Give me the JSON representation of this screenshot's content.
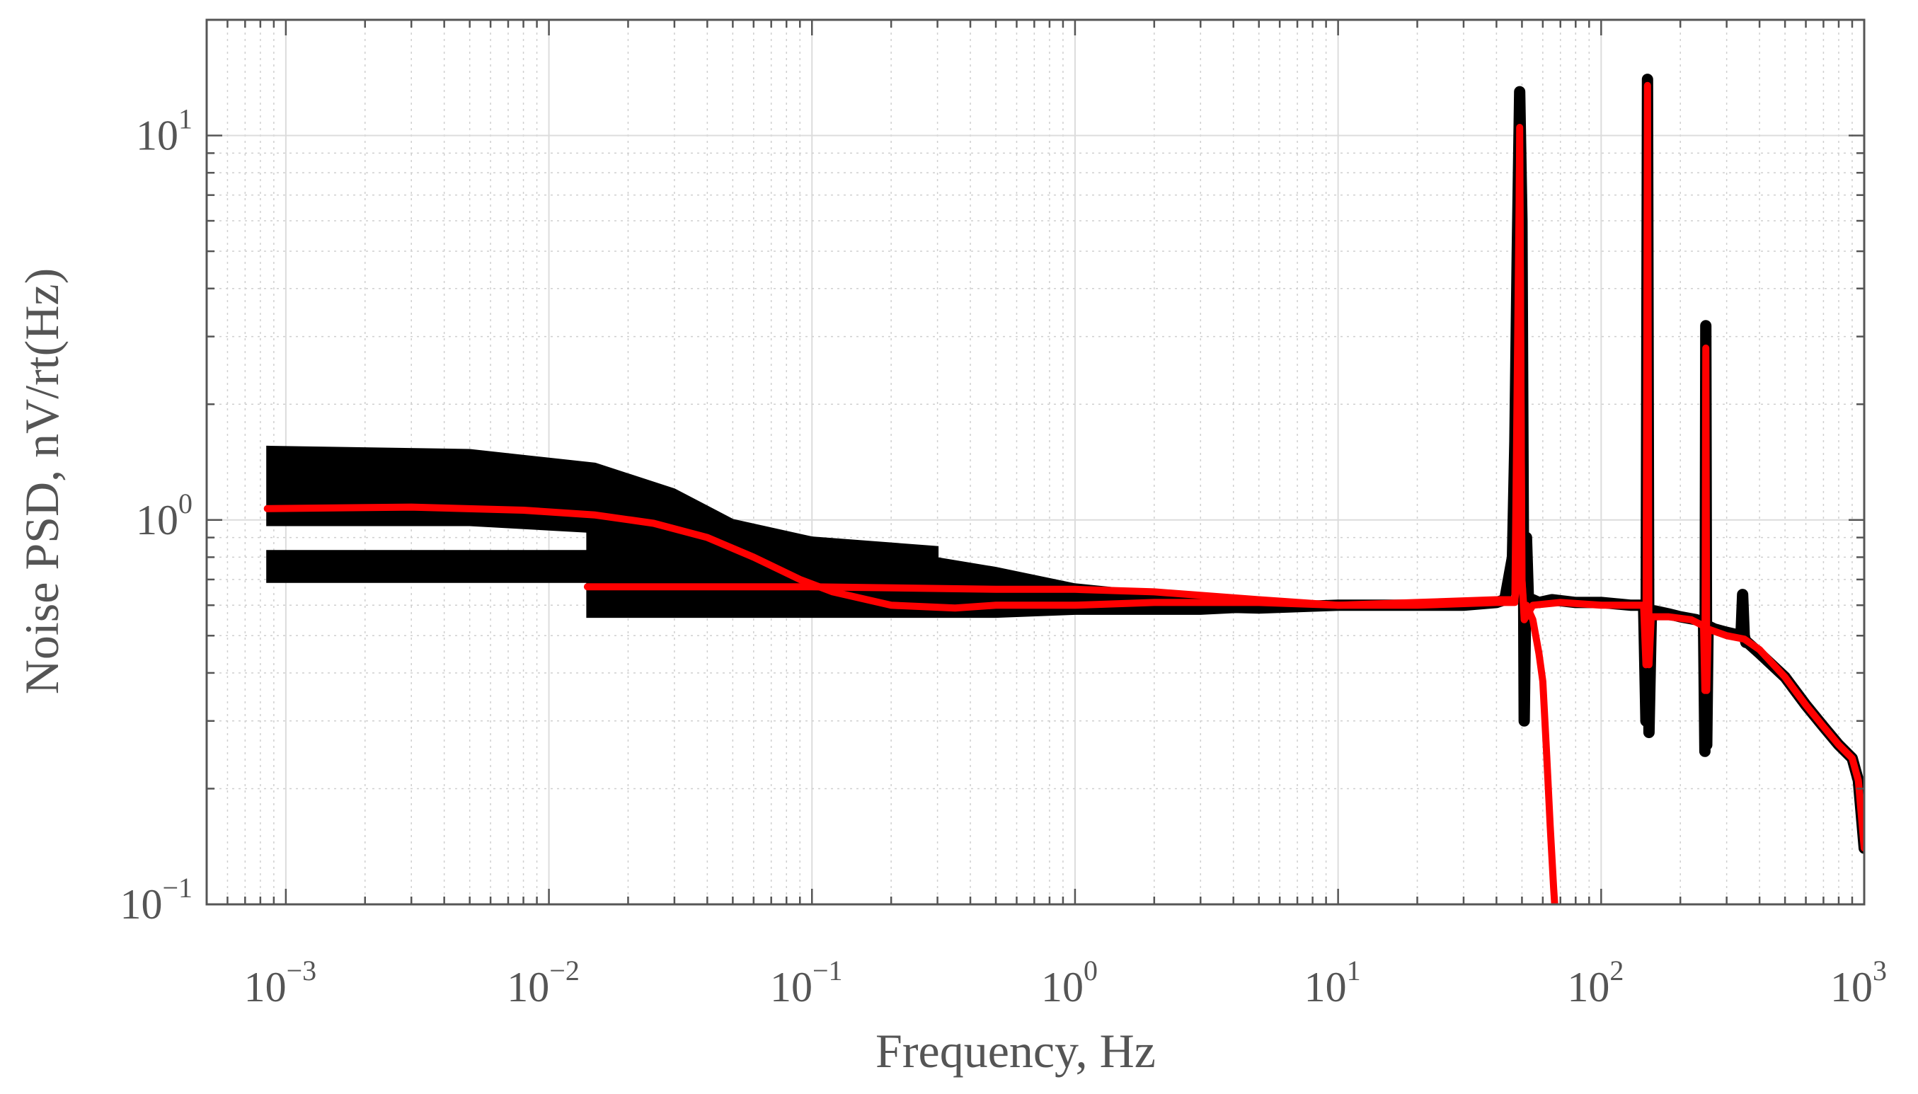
{
  "chart_data": {
    "type": "line",
    "title": "",
    "xlabel": "Frequency, Hz",
    "ylabel": "Noise PSD, nV/rt(Hz)",
    "xscale": "log",
    "yscale": "log",
    "xlim": [
      0.0005,
      1000
    ],
    "ylim": [
      0.1,
      20
    ],
    "grid": true,
    "legend": "none",
    "x_ticks": [
      {
        "base": "10",
        "exp": "−3",
        "value": 0.001
      },
      {
        "base": "10",
        "exp": "−2",
        "value": 0.01
      },
      {
        "base": "10",
        "exp": "−1",
        "value": 0.1
      },
      {
        "base": "10",
        "exp": "0",
        "value": 1
      },
      {
        "base": "10",
        "exp": "1",
        "value": 10
      },
      {
        "base": "10",
        "exp": "2",
        "value": 100
      },
      {
        "base": "10",
        "exp": "3",
        "value": 1000
      }
    ],
    "y_ticks": [
      {
        "base": "10",
        "exp": "−1",
        "value": 0.1
      },
      {
        "base": "10",
        "exp": "0",
        "value": 1
      },
      {
        "base": "10",
        "exp": "1",
        "value": 10
      }
    ],
    "bands": [
      {
        "color": "#000000",
        "x": [
          0.00085,
          0.014
        ],
        "y_low": [
          0.69,
          0.69
        ],
        "y_high": [
          0.83,
          0.83
        ]
      },
      {
        "color": "#000000",
        "x": [
          0.00085,
          0.005,
          0.015,
          0.03,
          0.05,
          0.1,
          0.3
        ],
        "y_low": [
          0.97,
          0.97,
          0.93,
          0.88,
          0.85,
          0.82,
          0.78
        ],
        "y_high": [
          1.55,
          1.52,
          1.4,
          1.2,
          1.0,
          0.9,
          0.85
        ]
      },
      {
        "color": "#000000",
        "x": [
          0.014,
          0.1,
          0.5,
          1,
          3,
          5
        ],
        "y_low": [
          0.56,
          0.56,
          0.56,
          0.57,
          0.57,
          0.58
        ],
        "y_high": [
          0.93,
          0.9,
          0.75,
          0.68,
          0.63,
          0.62
        ]
      }
    ],
    "series": [
      {
        "color": "#000000",
        "x": [
          2,
          5,
          10,
          20,
          30,
          40,
          43,
          46,
          47,
          48,
          49,
          50,
          51,
          52,
          53,
          55,
          58,
          65,
          80,
          100,
          130,
          140,
          145,
          148,
          150,
          152,
          155,
          160,
          180,
          200,
          230,
          245,
          248,
          250,
          252,
          255,
          270,
          300,
          340,
          345,
          350,
          355,
          360,
          400,
          500,
          600,
          700,
          800,
          900,
          950,
          1000
        ],
        "y": [
          0.6,
          0.59,
          0.6,
          0.6,
          0.6,
          0.61,
          0.62,
          0.8,
          1.6,
          5,
          13,
          6,
          0.3,
          0.9,
          0.6,
          0.62,
          0.61,
          0.62,
          0.61,
          0.61,
          0.6,
          0.6,
          0.6,
          0.3,
          14,
          0.28,
          0.55,
          0.58,
          0.57,
          0.56,
          0.55,
          0.54,
          0.25,
          3.2,
          0.26,
          0.53,
          0.52,
          0.51,
          0.5,
          0.64,
          0.5,
          0.48,
          0.48,
          0.45,
          0.39,
          0.33,
          0.29,
          0.26,
          0.24,
          0.21,
          0.14
        ]
      },
      {
        "color": "#ff0000",
        "x": [
          0.00085,
          0.003,
          0.008,
          0.015,
          0.025,
          0.04,
          0.06,
          0.09,
          0.12,
          0.2,
          0.35,
          0.5,
          1,
          2,
          5,
          10,
          20,
          40,
          47,
          48,
          49,
          50,
          51,
          52,
          55,
          58,
          60,
          62,
          64,
          66,
          68
        ],
        "y": [
          1.07,
          1.08,
          1.06,
          1.03,
          0.98,
          0.9,
          0.8,
          0.7,
          0.65,
          0.6,
          0.59,
          0.6,
          0.6,
          0.61,
          0.61,
          0.6,
          0.61,
          0.62,
          0.62,
          0.7,
          10.5,
          0.7,
          0.57,
          0.6,
          0.55,
          0.45,
          0.38,
          0.25,
          0.16,
          0.11,
          0.08
        ]
      },
      {
        "color": "#ff0000",
        "x": [
          0.014,
          0.1,
          0.5,
          1,
          2,
          5,
          10,
          20,
          40,
          47,
          49,
          50,
          51,
          55,
          70,
          100,
          130,
          145,
          148,
          150,
          152,
          155,
          180,
          220,
          245,
          248,
          250,
          252,
          255,
          300,
          350,
          400,
          500,
          600,
          700,
          800,
          900,
          950,
          1000
        ],
        "y": [
          0.67,
          0.67,
          0.66,
          0.66,
          0.65,
          0.62,
          0.6,
          0.6,
          0.61,
          0.61,
          9,
          0.7,
          0.55,
          0.6,
          0.61,
          0.6,
          0.6,
          0.6,
          0.42,
          13.5,
          0.42,
          0.56,
          0.56,
          0.55,
          0.53,
          0.36,
          2.8,
          0.36,
          0.52,
          0.5,
          0.49,
          0.46,
          0.39,
          0.33,
          0.29,
          0.26,
          0.24,
          0.21,
          0.14
        ]
      }
    ]
  }
}
